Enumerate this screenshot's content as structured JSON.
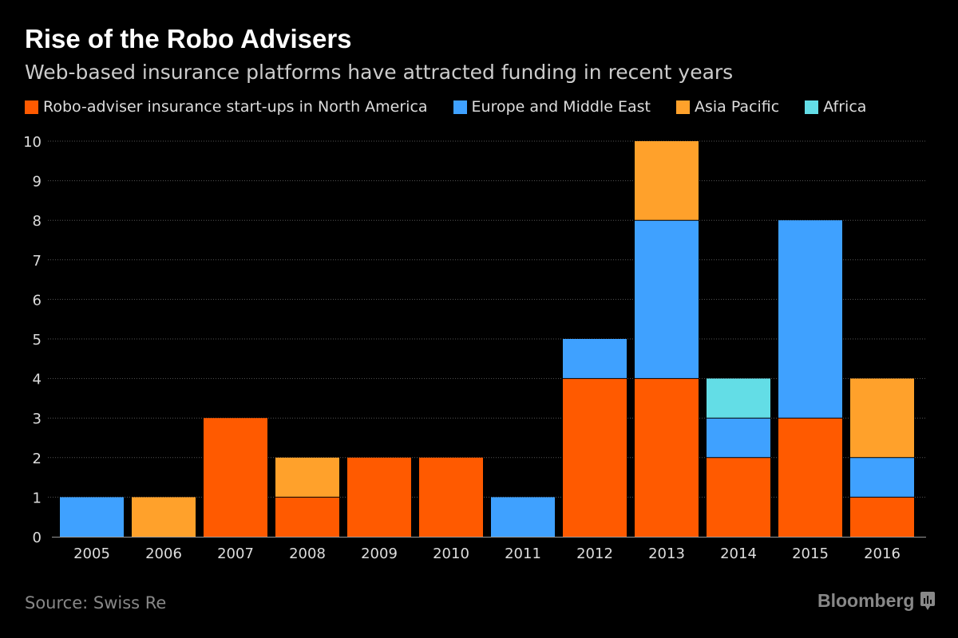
{
  "title": "Rise of the Robo Advisers",
  "subtitle": "Web-based insurance platforms have attracted funding in recent years",
  "source": "Source: Swiss Re",
  "logo": "Bloomberg",
  "chart_data": {
    "type": "bar",
    "stacked": true,
    "categories": [
      "2005",
      "2006",
      "2007",
      "2008",
      "2009",
      "2010",
      "2011",
      "2012",
      "2013",
      "2014",
      "2015",
      "2016"
    ],
    "series": [
      {
        "name": "Robo-adviser insurance start-ups in North America",
        "color": "#ff5a00",
        "values": [
          0,
          0,
          3,
          1,
          2,
          2,
          0,
          4,
          4,
          2,
          3,
          1
        ]
      },
      {
        "name": "Europe and Middle East",
        "color": "#3fa1ff",
        "values": [
          1,
          0,
          0,
          0,
          0,
          0,
          1,
          1,
          4,
          1,
          5,
          1
        ]
      },
      {
        "name": "Asia Pacific",
        "color": "#ffa12b",
        "values": [
          0,
          1,
          0,
          1,
          0,
          0,
          0,
          0,
          2,
          0,
          0,
          2
        ]
      },
      {
        "name": "Africa",
        "color": "#63dde6",
        "values": [
          0,
          0,
          0,
          0,
          0,
          0,
          0,
          0,
          0,
          1,
          0,
          0
        ]
      }
    ],
    "ylim": [
      0,
      10
    ],
    "yticks": [
      "0",
      "1",
      "2",
      "3",
      "4",
      "5",
      "6",
      "7",
      "8",
      "9",
      "10"
    ],
    "grid": true,
    "legend_position": "top"
  }
}
